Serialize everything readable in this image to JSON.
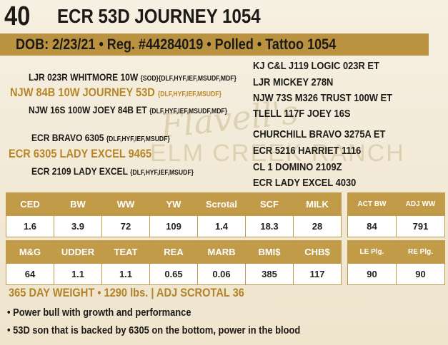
{
  "lot": "40",
  "name": "ECR 53D JOURNEY 1054",
  "info": "DOB: 2/23/21 • Reg. #44284019 • Polled • Tattoo 1054",
  "watermark": {
    "script": "Flavell's",
    "ranch": "ELM CREEK RANCH"
  },
  "pedigree": {
    "left": [
      {
        "name": "LJR 023R WHITMORE 10W",
        "notes": "{SOD}{DLF,HYF,IEF,MSUDF,MDF}"
      },
      {
        "name": "NJW 84B 10W JOURNEY 53D",
        "notes": "{DLF,HYF,IEF,MSUDF}"
      },
      {
        "name": "NJW 16S 100W JOEY 84B ET",
        "notes": "{DLF,HYF,IEF,MSUDF,MDF}"
      },
      {
        "name": "ECR BRAVO 6305",
        "notes": "{DLF,HYF,IEF,MSUDF}"
      },
      {
        "name": "ECR 6305 LADY EXCEL 9465"
      },
      {
        "name": "ECR 2109 LADY EXCEL",
        "notes": "{DLF,HYF,IEF,MSUDF}"
      }
    ],
    "right": [
      "KJ C&L J119 LOGIC 023R ET",
      "LJR MICKEY 278N",
      "NJW 73S M326 TRUST 100W ET",
      "TLELL 117F JOEY 16S",
      "CHURCHILL BRAVO 3275A ET",
      "ECR 5216 HARRIET 1116",
      "CL 1 DOMINO 2109Z",
      "ECR LADY EXCEL 4030"
    ]
  },
  "epd_table": {
    "rows": [
      {
        "headers": [
          "CED",
          "BW",
          "WW",
          "YW",
          "Scrotal",
          "SCF",
          "MILK"
        ],
        "values": [
          "1.6",
          "3.9",
          "72",
          "109",
          "1.4",
          "18.3",
          "28"
        ]
      },
      {
        "headers": [
          "M&G",
          "UDDER",
          "TEAT",
          "REA",
          "MARB",
          "BMI$",
          "CHB$"
        ],
        "values": [
          "64",
          "1.1",
          "1.1",
          "0.65",
          "0.06",
          "385",
          "117"
        ]
      }
    ]
  },
  "side_table": {
    "rows": [
      {
        "headers": [
          "ACT BW",
          "ADJ WW"
        ],
        "values": [
          "84",
          "791"
        ]
      },
      {
        "headers": [
          "LE Plg.",
          "RE Plg."
        ],
        "values": [
          "90",
          "90"
        ]
      }
    ]
  },
  "summary": "365 DAY WEIGHT • 1290 lbs. | ADJ SCROTAL 36",
  "bullets": [
    "Power bull with growth and performance",
    "53D son that is backed by 6305 on the bottom, power in the blood"
  ]
}
